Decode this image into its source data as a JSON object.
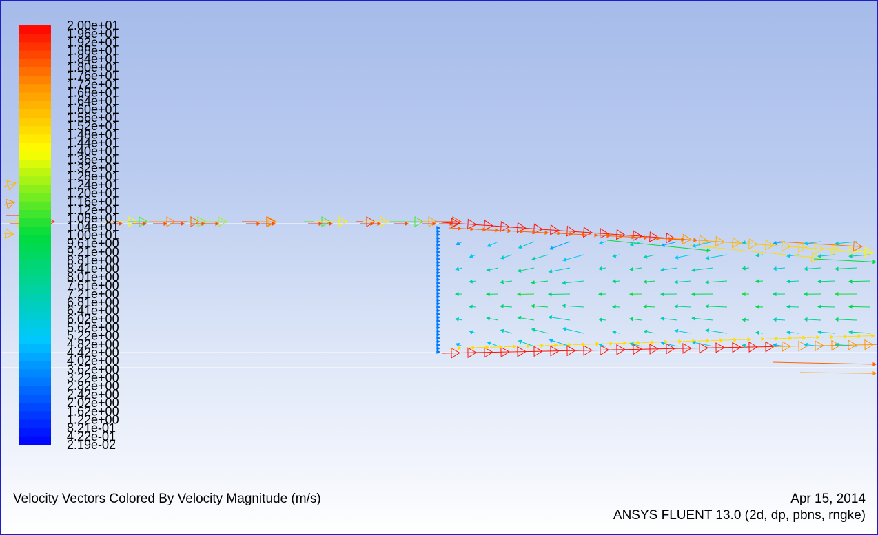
{
  "plot": {
    "title": "Velocity Vectors Colored By Velocity Magnitude (m/s)",
    "date": "Apr 15, 2014",
    "version": "ANSYS FLUENT 13.0 (2d, dp, pbns, rngke)"
  },
  "colorbar": {
    "min": 0.0219,
    "max": 20.0,
    "labels": [
      "2.00e+01",
      "1.96e+01",
      "1.92e+01",
      "1.88e+01",
      "1.84e+01",
      "1.80e+01",
      "1.76e+01",
      "1.72e+01",
      "1.68e+01",
      "1.64e+01",
      "1.60e+01",
      "1.56e+01",
      "1.52e+01",
      "1.48e+01",
      "1.44e+01",
      "1.40e+01",
      "1.36e+01",
      "1.32e+01",
      "1.28e+01",
      "1.24e+01",
      "1.20e+01",
      "1.16e+01",
      "1.12e+01",
      "1.08e+01",
      "1.04e+01",
      "1.00e+01",
      "9.61e+00",
      "9.21e+00",
      "8.81e+00",
      "8.41e+00",
      "8.01e+00",
      "7.61e+00",
      "7.21e+00",
      "6.81e+00",
      "6.41e+00",
      "6.02e+00",
      "5.62e+00",
      "5.22e+00",
      "4.82e+00",
      "4.42e+00",
      "4.02e+00",
      "3.62e+00",
      "3.22e+00",
      "2.82e+00",
      "2.42e+00",
      "2.02e+00",
      "1.62e+00",
      "1.22e+00",
      "8.21e-01",
      "4.22e-01",
      "2.19e-02"
    ]
  },
  "colors": {
    "border": "#1e1ec8",
    "bg_top": "#a6bbea",
    "bg_bottom": "#ffffff"
  }
}
